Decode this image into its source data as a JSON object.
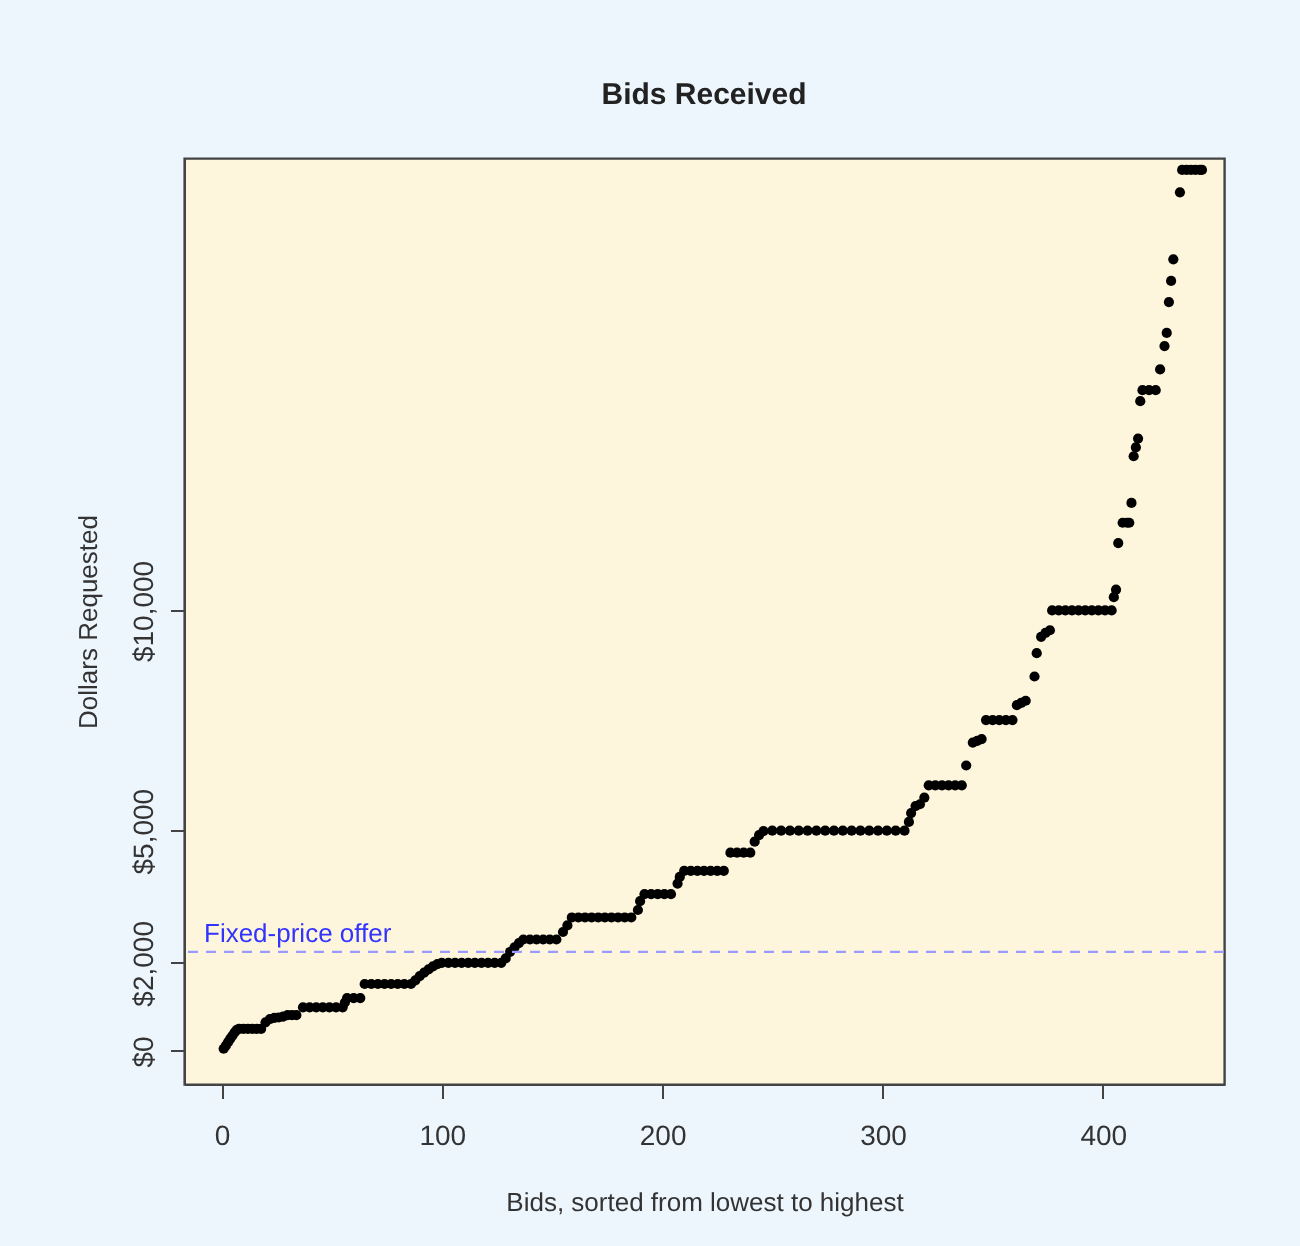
{
  "chart_data": {
    "type": "scatter",
    "title": "Bids Received",
    "xlabel": "Bids, sorted from lowest to highest",
    "ylabel": "Dollars Requested",
    "series": [
      {
        "color": "#000000",
        "x": [
          1,
          2,
          3,
          4,
          5,
          6,
          7,
          8,
          10,
          12,
          14,
          16,
          18,
          20,
          22,
          24,
          26,
          28,
          30,
          32,
          34,
          37,
          40,
          43,
          46,
          49,
          52,
          55,
          56,
          57,
          60,
          63,
          65,
          68,
          71,
          74,
          77,
          80,
          83,
          86,
          88,
          90,
          92,
          94,
          96,
          98,
          100,
          103,
          106,
          109,
          112,
          115,
          118,
          121,
          124,
          127,
          129,
          131,
          133,
          135,
          137,
          140,
          143,
          146,
          149,
          152,
          155,
          157,
          159,
          162,
          165,
          168,
          171,
          174,
          177,
          180,
          183,
          186,
          189,
          190,
          192,
          195,
          198,
          201,
          204,
          207,
          208,
          210,
          213,
          216,
          219,
          222,
          225,
          228,
          231,
          234,
          237,
          240,
          242,
          244,
          246,
          250,
          254,
          258,
          262,
          266,
          270,
          274,
          278,
          282,
          286,
          290,
          294,
          298,
          302,
          306,
          310,
          312,
          313,
          315,
          317,
          319,
          321,
          324,
          327,
          330,
          333,
          336,
          338,
          341,
          343,
          345,
          347,
          350,
          353,
          356,
          359,
          361,
          363,
          365,
          369,
          370,
          372,
          374,
          376,
          377,
          380,
          383,
          386,
          389,
          392,
          395,
          398,
          401,
          404,
          405,
          406,
          407,
          409,
          411,
          412,
          413,
          414,
          415,
          416,
          417,
          418,
          421,
          424,
          426,
          428,
          429,
          430,
          431,
          432,
          435,
          436,
          438,
          440,
          442,
          444,
          445
        ],
        "values": [
          50,
          120,
          200,
          280,
          350,
          420,
          480,
          500,
          500,
          500,
          500,
          500,
          500,
          650,
          725,
          750,
          760,
          780,
          815,
          815,
          815,
          990,
          990,
          990,
          990,
          990,
          990,
          990,
          1100,
          1200,
          1200,
          1200,
          1520,
          1520,
          1520,
          1520,
          1520,
          1520,
          1520,
          1520,
          1600,
          1700,
          1780,
          1850,
          1920,
          1970,
          2000,
          2000,
          2000,
          2000,
          2000,
          2000,
          2000,
          2000,
          2000,
          2000,
          2100,
          2250,
          2350,
          2450,
          2530,
          2530,
          2530,
          2530,
          2530,
          2530,
          2700,
          2850,
          3030,
          3030,
          3030,
          3030,
          3030,
          3030,
          3030,
          3030,
          3030,
          3030,
          3200,
          3400,
          3560,
          3560,
          3560,
          3560,
          3560,
          3800,
          3950,
          4090,
          4090,
          4090,
          4090,
          4090,
          4090,
          4090,
          4500,
          4500,
          4500,
          4500,
          4750,
          4900,
          4990,
          5000,
          5000,
          5000,
          5000,
          5000,
          5000,
          5000,
          5000,
          5000,
          5000,
          5000,
          5000,
          5000,
          5000,
          5000,
          5000,
          5200,
          5400,
          5560,
          5600,
          5750,
          6030,
          6030,
          6030,
          6030,
          6030,
          6030,
          6480,
          7000,
          7040,
          7080,
          7510,
          7510,
          7510,
          7510,
          7510,
          7850,
          7900,
          7950,
          8500,
          9030,
          9400,
          9490,
          9550,
          10000,
          10000,
          10000,
          10000,
          10000,
          10000,
          10000,
          10000,
          10000,
          10000,
          10300,
          10470,
          11530,
          11990,
          11990,
          11990,
          12440,
          13500,
          13700,
          13900,
          14750,
          15000,
          15000,
          15000,
          15470,
          16000,
          16300,
          17000,
          17480,
          17970,
          19490,
          20000,
          20000,
          20000,
          20000,
          20000,
          20000
        ]
      }
    ],
    "xlim": [
      -17,
      455
    ],
    "xticks": [
      0,
      100,
      200,
      300,
      400
    ],
    "ylim": [
      -750,
      20270
    ],
    "yticks": [
      {
        "value": 0,
        "label": "$0"
      },
      {
        "value": 2000,
        "label": "$2,000"
      },
      {
        "value": 5000,
        "label": "$5,000"
      },
      {
        "value": 10000,
        "label": "$10,000"
      }
    ],
    "ref_lines": [
      {
        "axis": "y",
        "value": 2250,
        "label": "Fixed-price offer",
        "color": "#9a9aff",
        "line_style": "dashed"
      }
    ],
    "grid": false
  }
}
